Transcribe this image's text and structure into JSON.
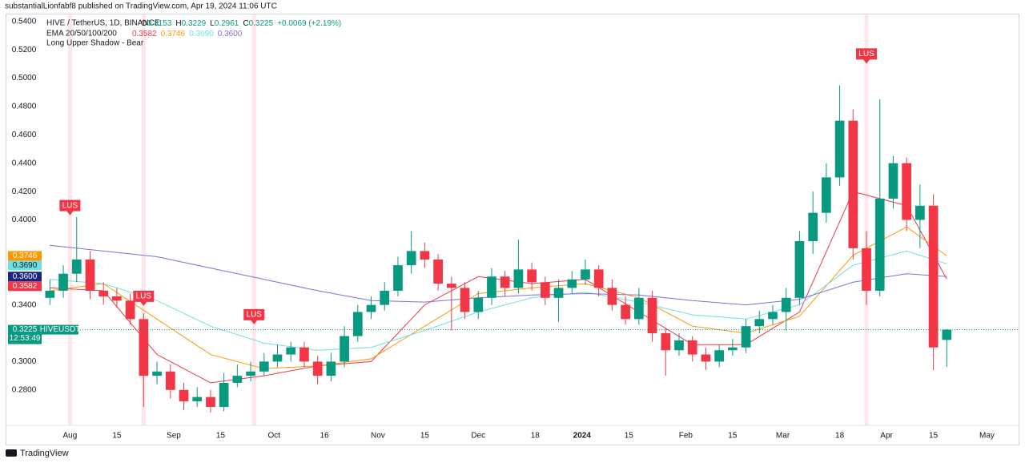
{
  "header": {
    "publisher": "substantialLionfabf8 published on TradingView.com, Apr 19, 2024 11:06 UTC"
  },
  "legend": {
    "symbol": "HIVE / TetherUS, 1D, BINANCE",
    "ohlc": [
      {
        "key": "O",
        "value": "0.3153"
      },
      {
        "key": "H",
        "value": "0.3229"
      },
      {
        "key": "L",
        "value": "0.2961"
      },
      {
        "key": "C",
        "value": "0.3225"
      }
    ],
    "change": "+0.0069 (+2.19%)",
    "ema_title": "EMA 20/50/100/200",
    "ema_values": [
      "0.3582",
      "0.3746",
      "0.3690",
      "0.3600"
    ],
    "pattern": "Long Upper Shadow - Bear"
  },
  "footer": {
    "brand": "TradingView"
  },
  "chart_data": {
    "type": "candlestick",
    "up_color": "#089981",
    "down_color": "#f23645",
    "xlim": [
      12,
      308
    ],
    "ylim": [
      0.255,
      0.545
    ],
    "yticks": [
      {
        "value": 0.28,
        "label": "0.2800"
      },
      {
        "value": 0.3,
        "label": "0.3000"
      },
      {
        "value": 0.34,
        "label": "0.3400"
      },
      {
        "value": 0.4,
        "label": "0.4000"
      },
      {
        "value": 0.42,
        "label": "0.4200"
      },
      {
        "value": 0.44,
        "label": "0.4400"
      },
      {
        "value": 0.46,
        "label": "0.4600"
      },
      {
        "value": 0.48,
        "label": "0.4800"
      },
      {
        "value": 0.5,
        "label": "0.5000"
      },
      {
        "value": 0.52,
        "label": "0.5200"
      },
      {
        "value": 0.54,
        "label": "0.5400"
      }
    ],
    "xticks": [
      {
        "value": 31,
        "label": "Aug"
      },
      {
        "value": 45,
        "label": "15"
      },
      {
        "value": 62,
        "label": "Sep"
      },
      {
        "value": 76,
        "label": "15"
      },
      {
        "value": 92,
        "label": "Oct"
      },
      {
        "value": 107,
        "label": "16"
      },
      {
        "value": 123,
        "label": "Nov"
      },
      {
        "value": 137,
        "label": "15"
      },
      {
        "value": 153,
        "label": "Dec"
      },
      {
        "value": 170,
        "label": "18"
      },
      {
        "value": 184,
        "label": "2024"
      },
      {
        "value": 198,
        "label": "15"
      },
      {
        "value": 215,
        "label": "Feb"
      },
      {
        "value": 229,
        "label": "15"
      },
      {
        "value": 244,
        "label": "Mar"
      },
      {
        "value": 261,
        "label": "18"
      },
      {
        "value": 275,
        "label": "Apr"
      },
      {
        "value": 289,
        "label": "15"
      },
      {
        "value": 305,
        "label": "May"
      }
    ],
    "x": [
      25,
      29,
      33,
      37,
      41,
      45,
      49,
      53,
      57,
      61,
      65,
      69,
      73,
      77,
      81,
      85,
      89,
      93,
      97,
      101,
      105,
      109,
      113,
      117,
      121,
      125,
      129,
      133,
      137,
      141,
      145,
      149,
      153,
      157,
      161,
      165,
      169,
      173,
      177,
      181,
      185,
      189,
      193,
      197,
      201,
      205,
      209,
      213,
      217,
      221,
      225,
      229,
      233,
      237,
      241,
      245,
      249,
      253,
      257,
      261,
      265,
      269,
      273,
      277,
      281,
      285,
      289,
      293
    ],
    "open": [
      0.345,
      0.35,
      0.362,
      0.372,
      0.35,
      0.346,
      0.343,
      0.33,
      0.29,
      0.293,
      0.28,
      0.272,
      0.275,
      0.268,
      0.285,
      0.29,
      0.293,
      0.3,
      0.305,
      0.31,
      0.3,
      0.29,
      0.3,
      0.318,
      0.335,
      0.34,
      0.35,
      0.368,
      0.378,
      0.372,
      0.355,
      0.352,
      0.335,
      0.345,
      0.36,
      0.352,
      0.365,
      0.356,
      0.345,
      0.352,
      0.358,
      0.365,
      0.352,
      0.34,
      0.33,
      0.345,
      0.32,
      0.308,
      0.315,
      0.305,
      0.3,
      0.308,
      0.31,
      0.325,
      0.33,
      0.335,
      0.345,
      0.385,
      0.405,
      0.43,
      0.47,
      0.38,
      0.35,
      0.415,
      0.44,
      0.4,
      0.41,
      0.3153
    ],
    "high": [
      0.358,
      0.368,
      0.402,
      0.378,
      0.356,
      0.352,
      0.348,
      0.334,
      0.3,
      0.298,
      0.285,
      0.282,
      0.28,
      0.292,
      0.298,
      0.3,
      0.306,
      0.312,
      0.314,
      0.314,
      0.304,
      0.306,
      0.325,
      0.34,
      0.346,
      0.356,
      0.374,
      0.392,
      0.384,
      0.376,
      0.36,
      0.356,
      0.35,
      0.366,
      0.364,
      0.386,
      0.37,
      0.36,
      0.358,
      0.364,
      0.372,
      0.368,
      0.358,
      0.346,
      0.352,
      0.35,
      0.324,
      0.32,
      0.318,
      0.31,
      0.312,
      0.316,
      0.33,
      0.336,
      0.34,
      0.352,
      0.392,
      0.42,
      0.44,
      0.495,
      0.478,
      0.392,
      0.485,
      0.445,
      0.444,
      0.425,
      0.418,
      0.3229
    ],
    "low": [
      0.34,
      0.345,
      0.356,
      0.344,
      0.34,
      0.338,
      0.326,
      0.268,
      0.284,
      0.274,
      0.266,
      0.268,
      0.264,
      0.265,
      0.282,
      0.286,
      0.29,
      0.296,
      0.3,
      0.296,
      0.284,
      0.286,
      0.296,
      0.314,
      0.33,
      0.336,
      0.346,
      0.362,
      0.366,
      0.35,
      0.322,
      0.33,
      0.33,
      0.34,
      0.346,
      0.348,
      0.35,
      0.34,
      0.328,
      0.348,
      0.354,
      0.346,
      0.336,
      0.326,
      0.326,
      0.314,
      0.29,
      0.304,
      0.3,
      0.294,
      0.296,
      0.304,
      0.306,
      0.32,
      0.326,
      0.322,
      0.34,
      0.376,
      0.398,
      0.424,
      0.372,
      0.34,
      0.346,
      0.408,
      0.392,
      0.38,
      0.294,
      0.2961
    ],
    "close": [
      0.35,
      0.362,
      0.372,
      0.35,
      0.346,
      0.343,
      0.33,
      0.29,
      0.293,
      0.28,
      0.272,
      0.275,
      0.268,
      0.285,
      0.29,
      0.293,
      0.3,
      0.305,
      0.31,
      0.3,
      0.29,
      0.3,
      0.318,
      0.335,
      0.34,
      0.35,
      0.368,
      0.378,
      0.372,
      0.355,
      0.352,
      0.335,
      0.345,
      0.36,
      0.352,
      0.365,
      0.356,
      0.345,
      0.352,
      0.358,
      0.365,
      0.352,
      0.34,
      0.33,
      0.345,
      0.32,
      0.308,
      0.315,
      0.305,
      0.3,
      0.308,
      0.31,
      0.325,
      0.33,
      0.335,
      0.345,
      0.385,
      0.405,
      0.43,
      0.47,
      0.38,
      0.35,
      0.415,
      0.44,
      0.4,
      0.41,
      0.31,
      0.3225
    ],
    "ema_x": [
      25,
      41,
      57,
      73,
      89,
      105,
      121,
      137,
      153,
      169,
      185,
      201,
      217,
      233,
      249,
      265,
      281,
      293
    ],
    "ema_series": [
      {
        "name": "EMA 20",
        "color": "#f23645",
        "values": [
          0.352,
          0.35,
          0.305,
          0.285,
          0.29,
          0.297,
          0.3,
          0.34,
          0.36,
          0.355,
          0.358,
          0.335,
          0.312,
          0.312,
          0.335,
          0.42,
          0.41,
          0.3582
        ]
      },
      {
        "name": "EMA 50",
        "color": "#ff9800",
        "values": [
          0.35,
          0.355,
          0.33,
          0.305,
          0.295,
          0.297,
          0.302,
          0.325,
          0.348,
          0.352,
          0.355,
          0.345,
          0.325,
          0.32,
          0.332,
          0.375,
          0.395,
          0.3746
        ]
      },
      {
        "name": "EMA 100",
        "color": "#6fe0e0",
        "values": [
          0.358,
          0.355,
          0.343,
          0.325,
          0.313,
          0.308,
          0.31,
          0.322,
          0.335,
          0.345,
          0.349,
          0.342,
          0.333,
          0.33,
          0.34,
          0.368,
          0.378,
          0.369
        ]
      },
      {
        "name": "EMA 200",
        "color": "#7e6fd8",
        "values": [
          0.382,
          0.378,
          0.374,
          0.366,
          0.358,
          0.35,
          0.343,
          0.342,
          0.345,
          0.347,
          0.348,
          0.347,
          0.343,
          0.34,
          0.344,
          0.356,
          0.362,
          0.36
        ]
      }
    ],
    "annotations": [
      {
        "x": 31,
        "y": 0.405,
        "label": "LUS"
      },
      {
        "x": 53,
        "y": 0.341,
        "label": "LUS"
      },
      {
        "x": 86,
        "y": 0.328,
        "label": "LUS"
      },
      {
        "x": 269,
        "y": 0.512,
        "label": "LUS"
      }
    ],
    "price_tags": [
      {
        "value": 0.3746,
        "label": "0.3746",
        "color": "#ff9800"
      },
      {
        "value": 0.369,
        "label": "0.3690",
        "color": "#6fe0e0"
      },
      {
        "value": 0.36,
        "label": "0.3600",
        "color": "#1a237e"
      },
      {
        "value": 0.3582,
        "label": "0.3582",
        "color": "#f23645"
      }
    ],
    "last_price": {
      "value": 0.3225,
      "label": "0.3225",
      "countdown": "12:53:49",
      "symbol": "HIVEUSDT",
      "color": "#089981"
    }
  }
}
